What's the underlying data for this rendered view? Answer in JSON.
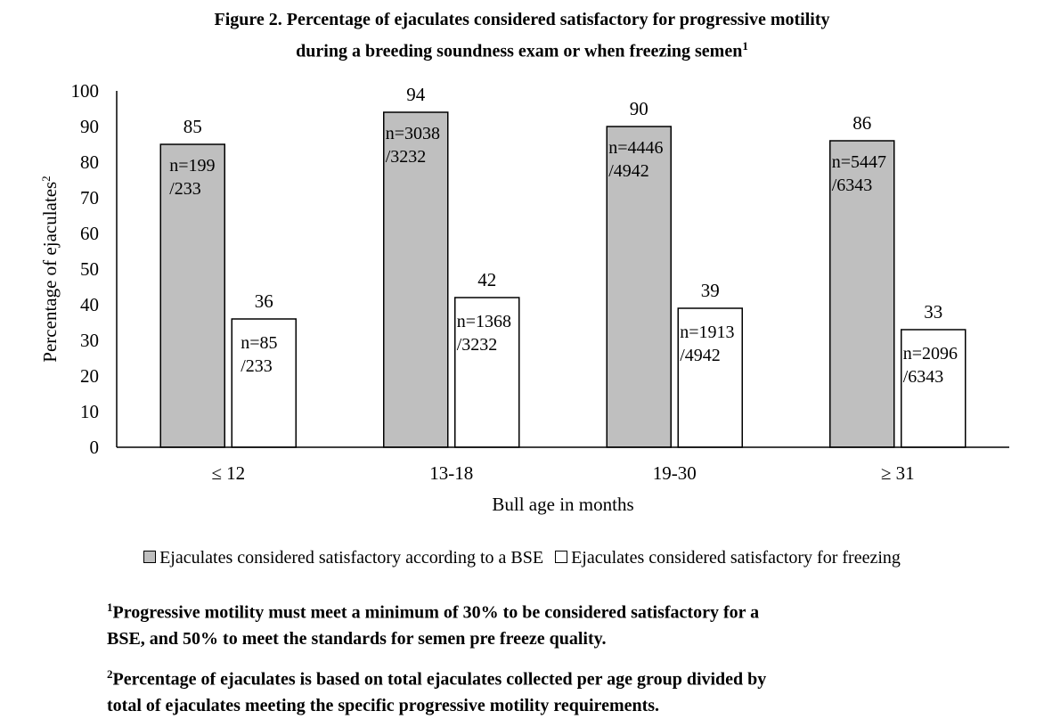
{
  "title": {
    "line1": "Figure 2. Percentage of ejaculates considered satisfactory for progressive motility",
    "line2": "during a breeding soundness exam or when freezing semen",
    "sup": "1"
  },
  "chart_data": {
    "type": "bar",
    "categories": [
      "≤ 12",
      "13-18",
      "19-30",
      "≥ 31"
    ],
    "xlabel": "Bull age in months",
    "ylabel": "Percentage of ejaculates",
    "ylabel_sup": "2",
    "ylim": [
      0,
      100
    ],
    "yticks": [
      0,
      10,
      20,
      30,
      40,
      50,
      60,
      70,
      80,
      90,
      100
    ],
    "grid": false,
    "legend_position": "bottom",
    "series": [
      {
        "name": "Ejaculates considered satisfactory according to a BSE",
        "color": "#bfbfbf",
        "values": [
          85,
          94,
          90,
          86
        ],
        "annotations": [
          [
            "n=199",
            "/233"
          ],
          [
            "n=3038",
            "/3232"
          ],
          [
            "n=4446",
            "/4942"
          ],
          [
            "n=5447",
            "/6343"
          ]
        ]
      },
      {
        "name": "Ejaculates considered satisfactory for freezing",
        "color": "#ffffff",
        "values": [
          36,
          42,
          39,
          33
        ],
        "annotations": [
          [
            "n=85",
            "/233"
          ],
          [
            "n=1368",
            "/3232"
          ],
          [
            "n=1913",
            "/4942"
          ],
          [
            "n=2096",
            "/6343"
          ]
        ]
      }
    ]
  },
  "footnotes": [
    {
      "sup": "1",
      "line1": "Progressive motility must meet a minimum of 30% to be considered satisfactory for a",
      "line2": "BSE, and 50% to meet the standards for semen pre freeze quality."
    },
    {
      "sup": "2",
      "line1": "Percentage of ejaculates is based on total ejaculates collected per age group divided by",
      "line2": "total of ejaculates meeting the specific progressive motility requirements."
    }
  ]
}
